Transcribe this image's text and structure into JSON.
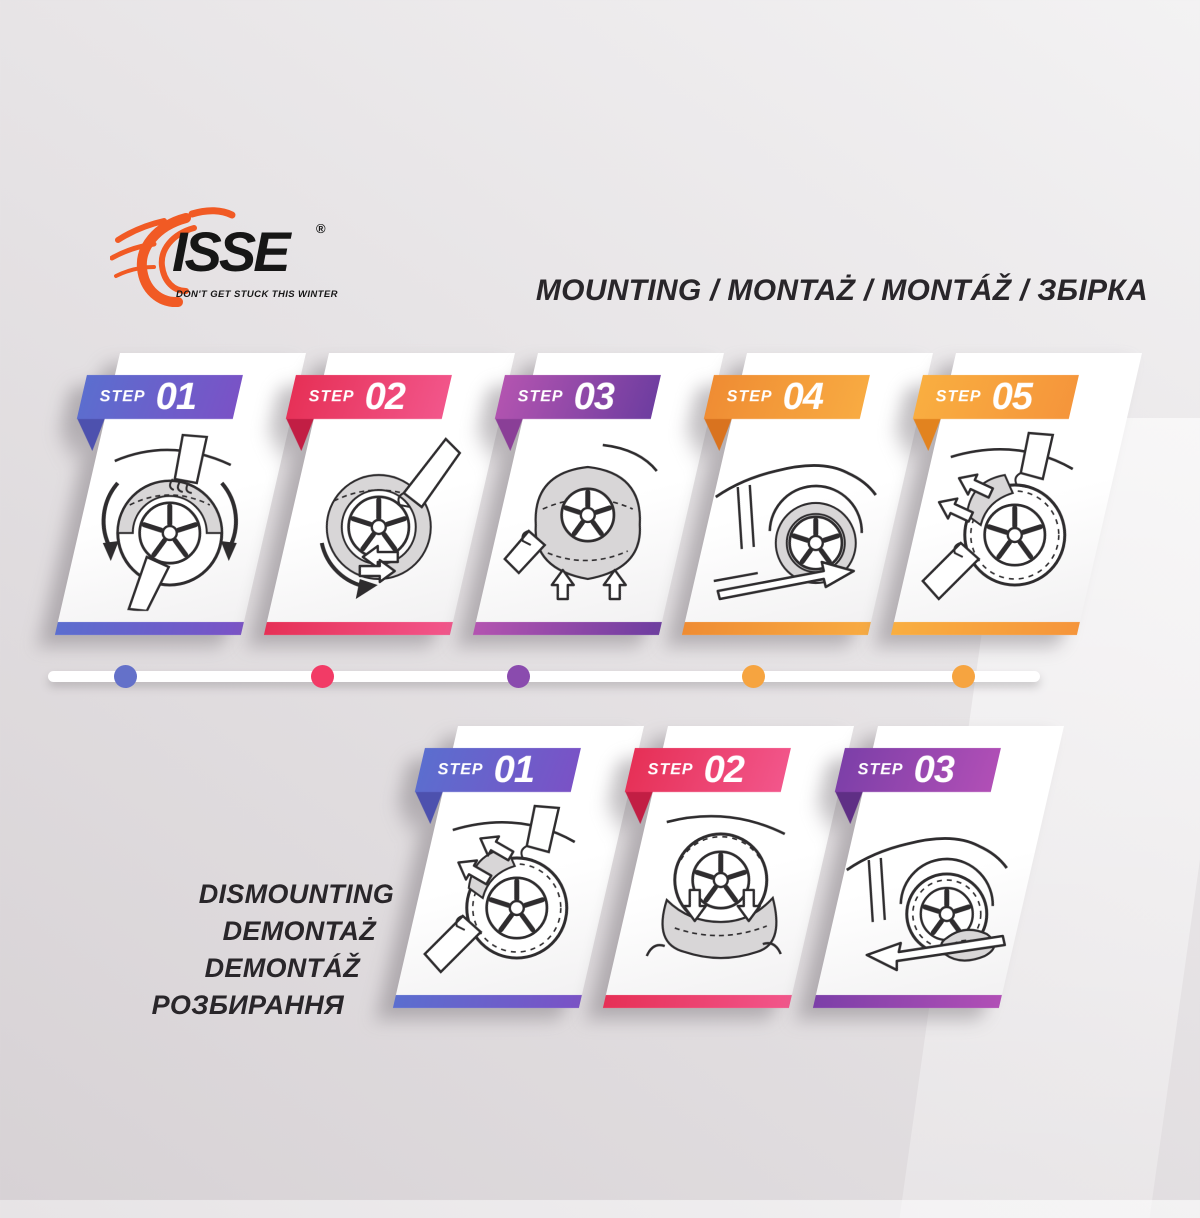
{
  "page": {
    "background": "#ded9dc"
  },
  "logo": {
    "brand": "ISSE",
    "registered": "®",
    "tagline": "DON'T GET STUCK THIS WINTER",
    "accent_color": "#f15a24"
  },
  "mounting": {
    "title": "MOUNTING / MONTAŻ / MONTÁŽ / ЗБІРКА",
    "steps": [
      {
        "label": "STEP",
        "number": "01",
        "color_start": "#5b6ecf",
        "color_end": "#7a52c6",
        "fold_color": "#4d51ae",
        "illustration": "hands-rotating-sock-on-wheel"
      },
      {
        "label": "STEP",
        "number": "02",
        "color_start": "#e63056",
        "color_end": "#f2568b",
        "fold_color": "#c21e44",
        "illustration": "pulling-sock-around-wheel"
      },
      {
        "label": "STEP",
        "number": "03",
        "color_start": "#b354b0",
        "color_end": "#6e3da0",
        "fold_color": "#8a3f97",
        "illustration": "stretching-sock-over-wheel"
      },
      {
        "label": "STEP",
        "number": "04",
        "color_start": "#ef8c33",
        "color_end": "#f8ab42",
        "fold_color": "#d9731f",
        "illustration": "car-driving-forward"
      },
      {
        "label": "STEP",
        "number": "05",
        "color_start": "#f9ae40",
        "color_end": "#f5953b",
        "fold_color": "#e2831f",
        "illustration": "hands-adjusting-sock"
      }
    ]
  },
  "timeline": {
    "dot_colors": [
      "#6471c9",
      "#f23b66",
      "#8a4bae",
      "#f6a440",
      "#f6a440"
    ]
  },
  "dismounting": {
    "title_lines": [
      "DISMOUNTING",
      "DEMONTAŻ",
      "DEMONTÁŽ",
      "РОЗБИРАННЯ"
    ],
    "steps": [
      {
        "label": "STEP",
        "number": "01",
        "color_start": "#5b6ecf",
        "color_end": "#7a52c6",
        "fold_color": "#4d51ae",
        "illustration": "hands-pulling-sock-off"
      },
      {
        "label": "STEP",
        "number": "02",
        "color_start": "#e63056",
        "color_end": "#f2568b",
        "fold_color": "#c21e44",
        "illustration": "sock-pulled-down-off-wheel"
      },
      {
        "label": "STEP",
        "number": "03",
        "color_start": "#7c3fa8",
        "color_end": "#b14fb6",
        "fold_color": "#5f2f85",
        "illustration": "car-reversing-off-sock"
      }
    ]
  }
}
